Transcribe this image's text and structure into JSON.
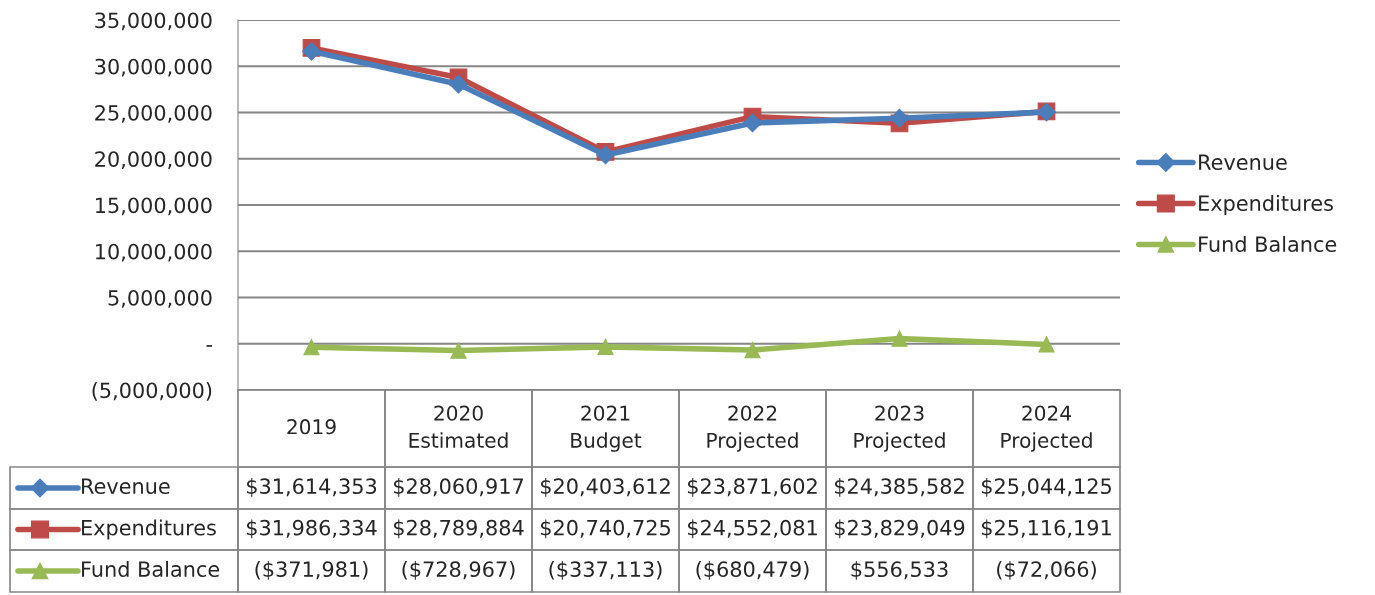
{
  "chart_data": {
    "type": "line",
    "categories": [
      "2019",
      "2020\nEstimated",
      "2021\nBudget",
      "2022\nProjected",
      "2023\nProjected",
      "2024\nProjected"
    ],
    "series": [
      {
        "name": "Revenue",
        "color": "#4a7ebb",
        "marker": "diamond",
        "values": [
          31614353,
          28060917,
          20403612,
          23871602,
          24385582,
          25044125
        ],
        "value_labels": [
          "$31,614,353",
          "$28,060,917",
          "$20,403,612",
          "$23,871,602",
          "$24,385,582",
          "$25,044,125"
        ]
      },
      {
        "name": "Expenditures",
        "color": "#be4b48",
        "marker": "square",
        "values": [
          31986334,
          28789884,
          20740725,
          24552081,
          23829049,
          25116191
        ],
        "value_labels": [
          "$31,986,334",
          "$28,789,884",
          "$20,740,725",
          "$24,552,081",
          "$23,829,049",
          "$25,116,191"
        ]
      },
      {
        "name": "Fund Balance",
        "color": "#98b954",
        "marker": "triangle",
        "values": [
          -371981,
          -728967,
          -337113,
          -680479,
          556533,
          -72066
        ],
        "value_labels": [
          "($371,981)",
          "($728,967)",
          "($337,113)",
          "($680,479)",
          "$556,533",
          "($72,066)"
        ]
      }
    ],
    "ylim": [
      -5000000,
      35000000
    ],
    "yticks": [
      {
        "value": -5000000,
        "label": "(5,000,000)"
      },
      {
        "value": 0,
        "label": "-"
      },
      {
        "value": 5000000,
        "label": "5,000,000"
      },
      {
        "value": 10000000,
        "label": "10,000,000"
      },
      {
        "value": 15000000,
        "label": "15,000,000"
      },
      {
        "value": 20000000,
        "label": "20,000,000"
      },
      {
        "value": 25000000,
        "label": "25,000,000"
      },
      {
        "value": 30000000,
        "label": "30,000,000"
      },
      {
        "value": 35000000,
        "label": "35,000,000"
      }
    ],
    "grid": "y",
    "legend": "right",
    "line_style": "solid"
  }
}
